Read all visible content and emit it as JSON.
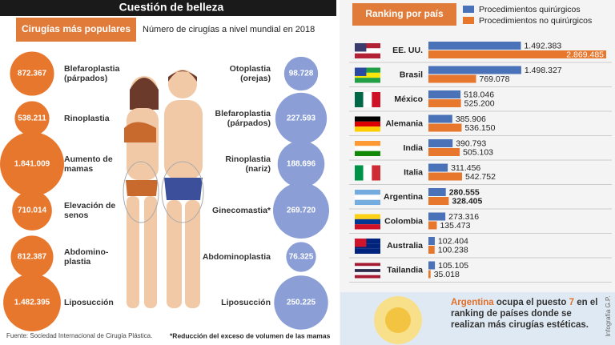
{
  "chart_data": [
    {
      "type": "bubble",
      "title": "Cuestión de belleza",
      "subtitle": "Cirugías más populares",
      "description": "Número de cirugías a nivel mundial en 2018",
      "groups": [
        {
          "color": "#e8772e",
          "categories": [
            "Blefaroplastia (párpados)",
            "Rinoplastia",
            "Aumento de mamas",
            "Elevación de senos",
            "Abdomino-plastia",
            "Liposucción"
          ],
          "values": [
            872367,
            538211,
            1841009,
            710014,
            812387,
            1482395
          ],
          "value_labels": [
            "872.367",
            "538.211",
            "1.841.009",
            "710.014",
            "812.387",
            "1.482.395"
          ]
        },
        {
          "color": "#8b9fd6",
          "categories": [
            "Otoplastia (orejas)",
            "Blefaroplastia (párpados)",
            "Rinoplastia (nariz)",
            "Ginecomastia*",
            "Abdominoplastia",
            "Liposucción"
          ],
          "values": [
            98728,
            227593,
            188696,
            269720,
            76325,
            250225
          ],
          "value_labels": [
            "98.728",
            "227.593",
            "188.696",
            "269.720",
            "76.325",
            "250.225"
          ]
        }
      ],
      "source": "Fuente: Sociedad Internacional de Cirugía Plástica.",
      "footnote": "*Reducción del exceso de volumen de las mamas"
    },
    {
      "type": "bar",
      "orientation": "horizontal",
      "title": "Ranking por país",
      "categories": [
        "EE. UU.",
        "Brasil",
        "México",
        "Alemania",
        "India",
        "Italia",
        "Argentina",
        "Colombia",
        "Australia",
        "Tailandia"
      ],
      "series": [
        {
          "name": "Procedimientos quirúrgicos",
          "color": "#4a72b8",
          "values": [
            1492383,
            1498327,
            518046,
            385906,
            390793,
            311456,
            280555,
            273316,
            102404,
            105105
          ],
          "value_labels": [
            "1.492.383",
            "1.498.327",
            "518.046",
            "385.906",
            "390.793",
            "311.456",
            "280.555",
            "273.316",
            "102.404",
            "105.105"
          ]
        },
        {
          "name": "Procedimientos no quirúrgicos",
          "color": "#e8772e",
          "values": [
            2869485,
            769078,
            525200,
            536150,
            505103,
            542752,
            328405,
            135473,
            100238,
            35018
          ],
          "value_labels": [
            "2.869.485",
            "769.078",
            "525.200",
            "536.150",
            "505.103",
            "542.752",
            "328.405",
            "135.473",
            "100.238",
            "35.018"
          ]
        }
      ],
      "highlight": "Argentina",
      "note": {
        "country": "Argentina",
        "text1": "ocupa el puesto",
        "rank": 7,
        "text2": "en el ranking de países donde se realizan más cirugías estéticas."
      },
      "credit": "Infografía G.P."
    }
  ]
}
